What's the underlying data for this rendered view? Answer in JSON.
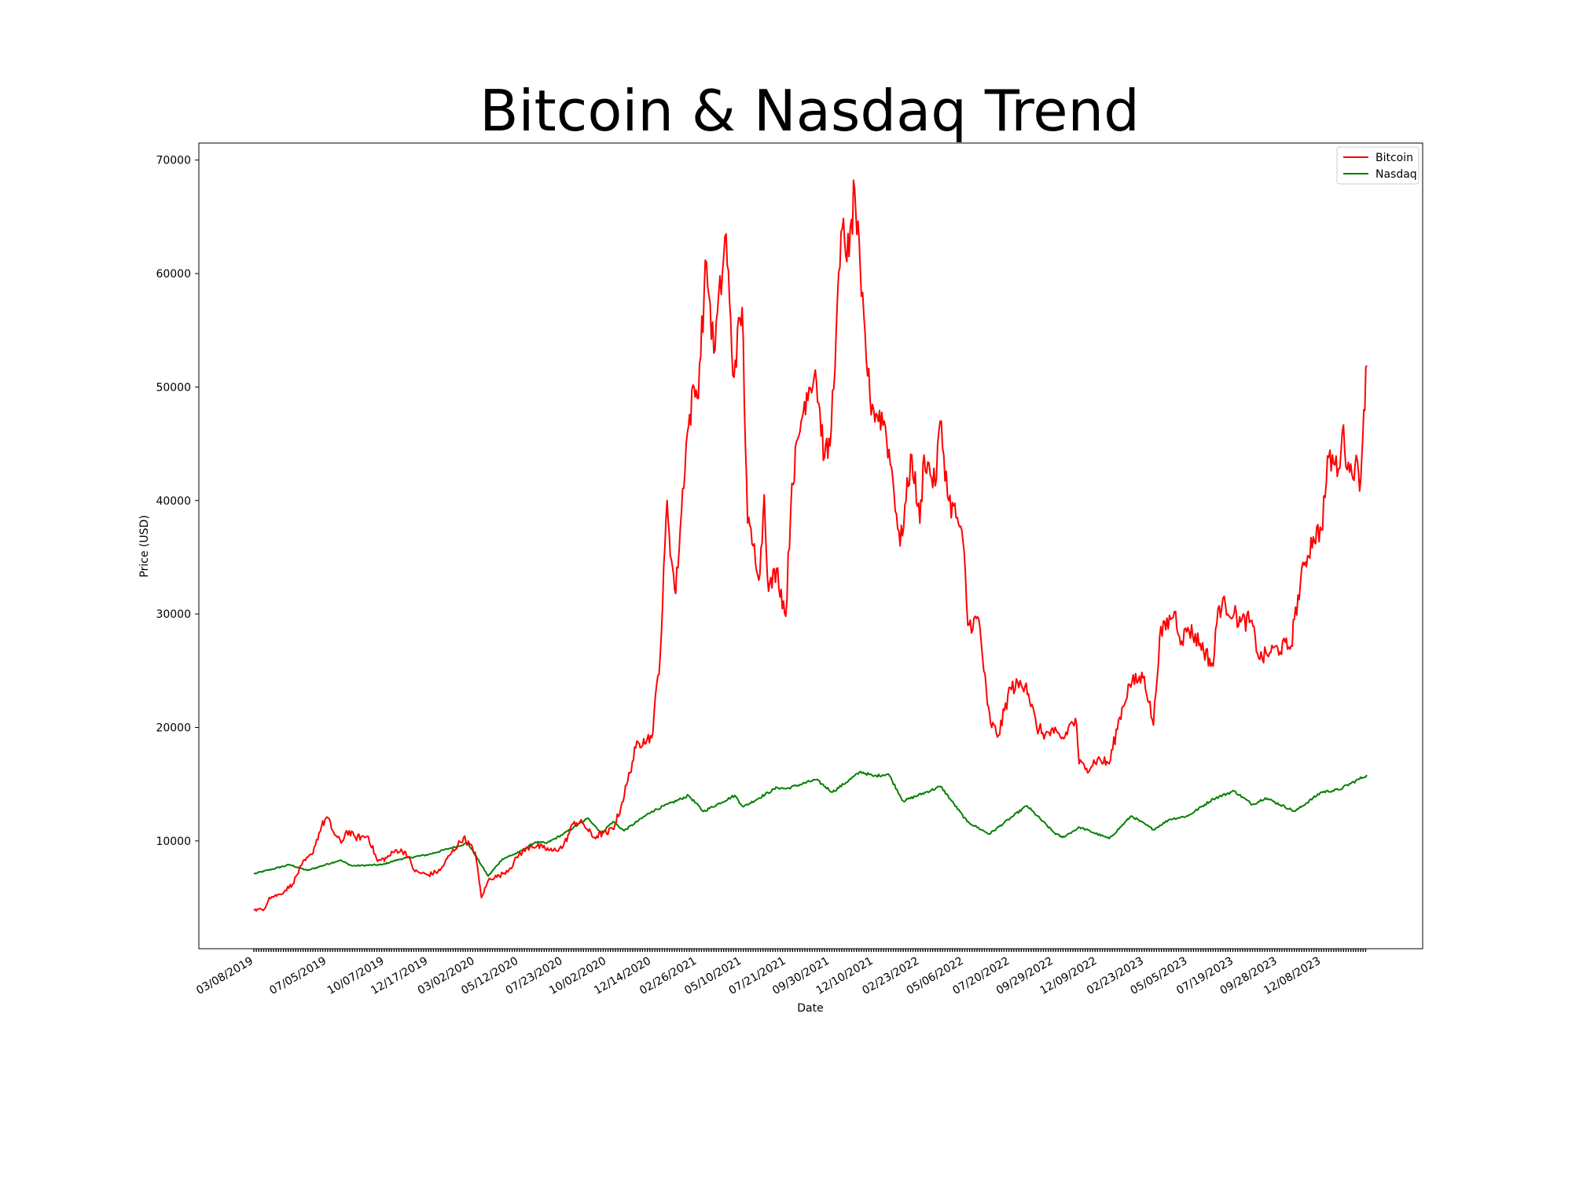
{
  "chart_data": {
    "type": "line",
    "title": "Bitcoin & Nasdaq Trend",
    "xlabel": "Date",
    "ylabel": "Price (USD)",
    "x_range": [
      "2019-03-08",
      "2024-02-20"
    ],
    "ylim": [
      500,
      71500
    ],
    "yticks": [
      10000,
      20000,
      30000,
      40000,
      50000,
      60000,
      70000
    ],
    "xtick_labels": [
      "03/08/2019",
      "07/05/2019",
      "10/07/2019",
      "12/17/2019",
      "03/02/2020",
      "05/12/2020",
      "07/23/2020",
      "10/02/2020",
      "12/14/2020",
      "02/26/2021",
      "05/10/2021",
      "07/21/2021",
      "09/30/2021",
      "12/10/2021",
      "02/23/2022",
      "05/06/2022",
      "07/20/2022",
      "09/29/2022",
      "12/09/2022",
      "02/23/2023",
      "05/05/2023",
      "07/19/2023",
      "09/28/2023",
      "12/08/2023"
    ],
    "grid": false,
    "legend_position": "upper right",
    "series": [
      {
        "name": "Bitcoin",
        "color": "#ff0000",
        "x": [
          "2019-03-08",
          "2019-03-25",
          "2019-04-02",
          "2019-04-20",
          "2019-05-10",
          "2019-05-25",
          "2019-06-10",
          "2019-06-26",
          "2019-07-05",
          "2019-07-16",
          "2019-07-28",
          "2019-08-06",
          "2019-08-20",
          "2019-09-10",
          "2019-09-25",
          "2019-10-10",
          "2019-10-26",
          "2019-11-10",
          "2019-11-25",
          "2019-12-17",
          "2020-01-05",
          "2020-01-20",
          "2020-02-12",
          "2020-03-02",
          "2020-03-12",
          "2020-03-25",
          "2020-04-10",
          "2020-04-28",
          "2020-05-12",
          "2020-06-01",
          "2020-06-20",
          "2020-07-05",
          "2020-07-23",
          "2020-08-10",
          "2020-08-25",
          "2020-09-10",
          "2020-09-25",
          "2020-10-02",
          "2020-10-15",
          "2020-10-25",
          "2020-11-05",
          "2020-11-18",
          "2020-12-01",
          "2020-12-14",
          "2020-12-28",
          "2021-01-08",
          "2021-01-15",
          "2021-01-22",
          "2021-02-08",
          "2021-02-21",
          "2021-02-26",
          "2021-03-13",
          "2021-03-25",
          "2021-04-14",
          "2021-04-25",
          "2021-05-10",
          "2021-05-19",
          "2021-05-28",
          "2021-06-08",
          "2021-06-15",
          "2021-06-22",
          "2021-07-05",
          "2021-07-20",
          "2021-07-30",
          "2021-08-14",
          "2021-08-23",
          "2021-09-06",
          "2021-09-21",
          "2021-09-30",
          "2021-10-10",
          "2021-10-20",
          "2021-10-31",
          "2021-11-09",
          "2021-11-20",
          "2021-12-04",
          "2021-12-10",
          "2021-12-27",
          "2022-01-10",
          "2022-01-22",
          "2022-02-10",
          "2022-02-23",
          "2022-03-02",
          "2022-03-20",
          "2022-03-28",
          "2022-04-11",
          "2022-04-25",
          "2022-05-06",
          "2022-05-12",
          "2022-05-30",
          "2022-06-13",
          "2022-06-18",
          "2022-07-01",
          "2022-07-20",
          "2022-08-15",
          "2022-09-01",
          "2022-09-15",
          "2022-09-29",
          "2022-10-15",
          "2022-10-28",
          "2022-11-05",
          "2022-11-09",
          "2022-11-21",
          "2022-12-09",
          "2022-12-28",
          "2023-01-14",
          "2023-01-30",
          "2023-02-23",
          "2023-03-10",
          "2023-03-20",
          "2023-04-13",
          "2023-04-25",
          "2023-05-05",
          "2023-05-25",
          "2023-06-15",
          "2023-06-23",
          "2023-07-05",
          "2023-07-19",
          "2023-07-30",
          "2023-08-15",
          "2023-08-30",
          "2023-09-15",
          "2023-09-28",
          "2023-10-20",
          "2023-10-25",
          "2023-11-10",
          "2023-11-25",
          "2023-12-08",
          "2023-12-20",
          "2024-01-05",
          "2024-01-11",
          "2024-01-23",
          "2024-02-01",
          "2024-02-10",
          "2024-02-15",
          "2024-02-20"
        ],
        "values": [
          3900,
          4000,
          5000,
          5300,
          6200,
          7900,
          8800,
          11300,
          12100,
          10700,
          9800,
          10900,
          10300,
          10400,
          8200,
          8500,
          9200,
          9000,
          7300,
          7000,
          7400,
          8700,
          10300,
          9000,
          5000,
          6700,
          6900,
          7600,
          8800,
          9600,
          9400,
          9100,
          9500,
          11700,
          11500,
          10300,
          10700,
          10600,
          11400,
          13000,
          15300,
          18200,
          19000,
          19100,
          26500,
          40000,
          34800,
          31800,
          45000,
          50000,
          49000,
          61000,
          53000,
          63500,
          51000,
          57000,
          38000,
          36000,
          33500,
          40500,
          32000,
          34000,
          29800,
          41500,
          47000,
          49500,
          51500,
          43800,
          44800,
          55000,
          64000,
          61500,
          67500,
          58000,
          49000,
          48000,
          47000,
          42000,
          36000,
          44000,
          38000,
          44000,
          41300,
          47000,
          40000,
          38500,
          35500,
          29000,
          29500,
          22000,
          20400,
          19300,
          23500,
          23900,
          20000,
          19400,
          19500,
          19000,
          20500,
          20300,
          16800,
          16400,
          17200,
          16800,
          20900,
          23800,
          24500,
          20200,
          28000,
          30200,
          27600,
          28800,
          27400,
          25400,
          30500,
          30800,
          30000,
          29300,
          29400,
          26000,
          26600,
          27000,
          27200,
          29500,
          34300,
          36800,
          37400,
          43800,
          42800,
          46000,
          42500,
          43200,
          41800,
          48000,
          51900
        ]
      },
      {
        "name": "Nasdaq",
        "color": "#008000",
        "x": [
          "2019-03-08",
          "2019-05-05",
          "2019-06-03",
          "2019-07-26",
          "2019-08-15",
          "2019-10-02",
          "2019-11-01",
          "2019-12-17",
          "2020-01-21",
          "2020-02-19",
          "2020-03-23",
          "2020-04-15",
          "2020-05-12",
          "2020-06-08",
          "2020-06-26",
          "2020-07-23",
          "2020-09-02",
          "2020-09-23",
          "2020-10-12",
          "2020-10-30",
          "2020-12-14",
          "2021-02-12",
          "2021-03-08",
          "2021-04-28",
          "2021-05-12",
          "2021-07-06",
          "2021-07-21",
          "2021-09-07",
          "2021-10-04",
          "2021-11-19",
          "2021-12-10",
          "2022-01-03",
          "2022-01-27",
          "2022-03-29",
          "2022-05-11",
          "2022-06-16",
          "2022-07-20",
          "2022-08-16",
          "2022-09-30",
          "2022-10-13",
          "2022-11-10",
          "2022-12-28",
          "2023-02-02",
          "2023-03-10",
          "2023-04-05",
          "2023-05-05",
          "2023-06-15",
          "2023-07-19",
          "2023-08-18",
          "2023-09-08",
          "2023-10-26",
          "2023-12-08",
          "2024-01-05",
          "2024-02-20"
        ],
        "values": [
          7100,
          7900,
          7400,
          8300,
          7800,
          7900,
          8400,
          8800,
          9350,
          9800,
          6900,
          8400,
          9000,
          9900,
          9800,
          10600,
          12000,
          10700,
          11700,
          10900,
          12600,
          14000,
          12600,
          14000,
          13000,
          14700,
          14600,
          15400,
          14300,
          16100,
          15700,
          15900,
          13500,
          14800,
          11700,
          10600,
          12000,
          13100,
          10700,
          10300,
          11200,
          10200,
          12200,
          11000,
          11900,
          12200,
          13700,
          14400,
          13200,
          13800,
          12600,
          14300,
          14500,
          15800
        ]
      }
    ]
  }
}
